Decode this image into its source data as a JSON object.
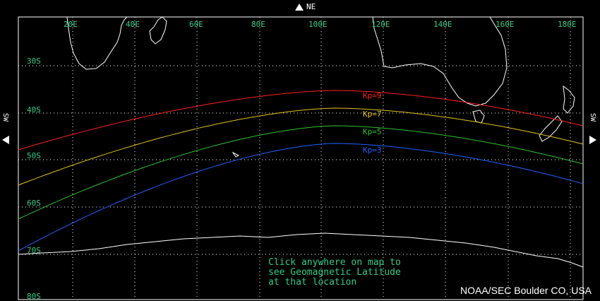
{
  "nav": {
    "ne": "NE",
    "sw_left": "SW",
    "sw_right": "SW"
  },
  "longitudes": [
    "20E",
    "40E",
    "60E",
    "80E",
    "100E",
    "120E",
    "140E",
    "160E",
    "180E"
  ],
  "latitudes": [
    "30S",
    "40S",
    "50S",
    "60S",
    "70S",
    "80S"
  ],
  "kp_lines": [
    {
      "label": "Kp=9",
      "color": "#ff2020"
    },
    {
      "label": "Kp=7",
      "color": "#e0c020"
    },
    {
      "label": "Kp=5",
      "color": "#30c030"
    },
    {
      "label": "Kp=3",
      "color": "#2060ff"
    }
  ],
  "instruction": {
    "line1": "Click anywhere on map to",
    "line2": "see Geomagnetic Latitude",
    "line3": "at that location"
  },
  "credit": "NOAA/SEC Boulder CO, USA",
  "colors": {
    "grid": "#ffffff",
    "coast": "#ffffff",
    "labels": "#33cc88"
  }
}
